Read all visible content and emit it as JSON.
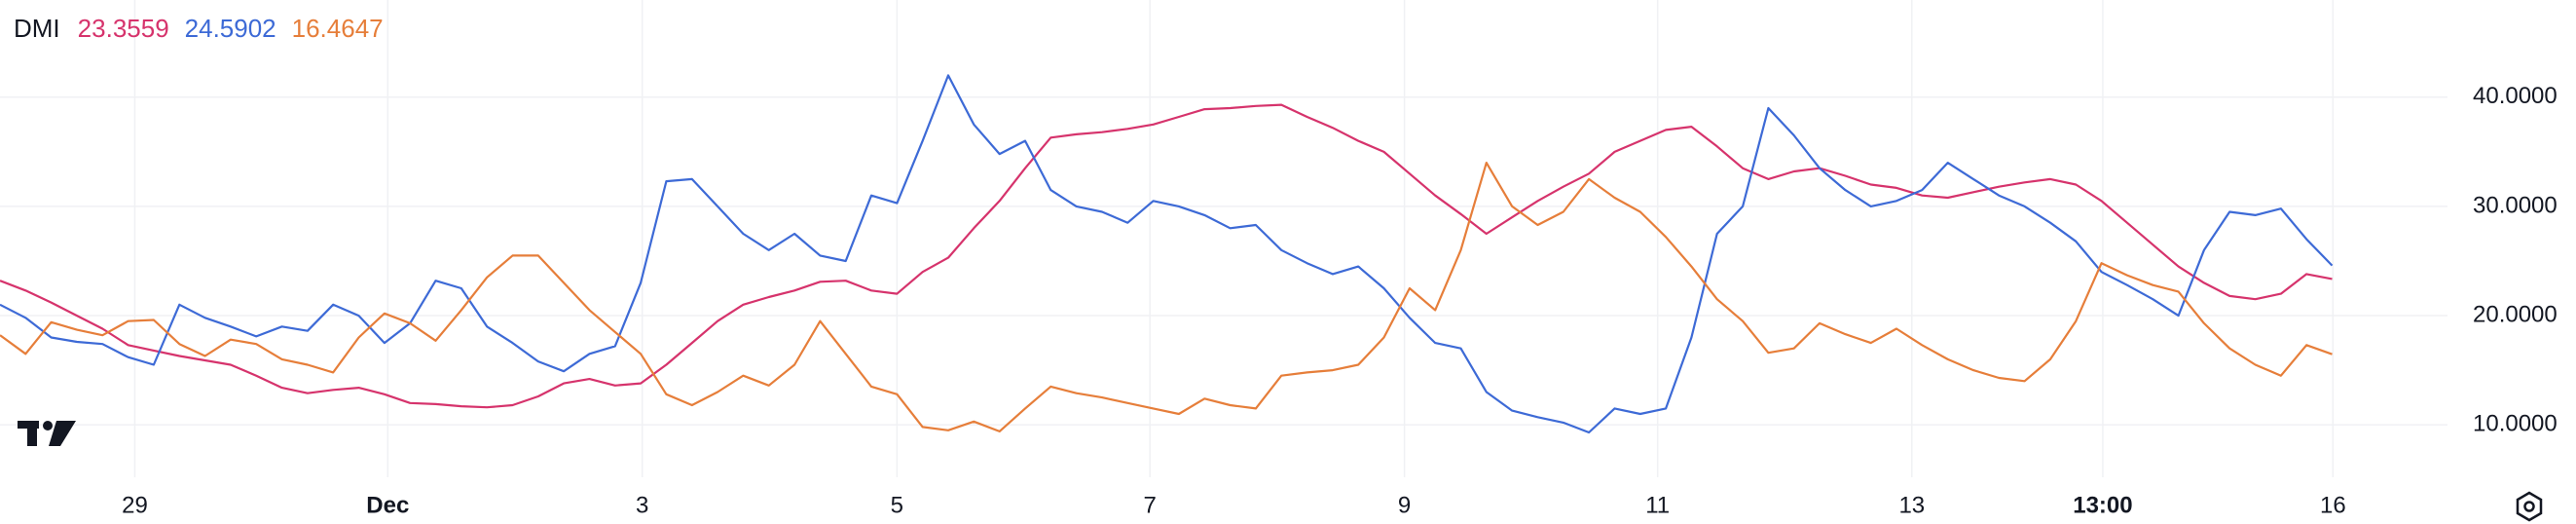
{
  "chart_data": {
    "type": "line",
    "title": "DMI",
    "xlim": [
      0,
      95.5
    ],
    "xticks": [
      {
        "value": 5.26,
        "label": "29"
      },
      {
        "value": 15.13,
        "label": "Dec"
      },
      {
        "value": 25.06,
        "label": "3"
      },
      {
        "value": 35,
        "label": "5"
      },
      {
        "value": 44.87,
        "label": "7"
      },
      {
        "value": 54.8,
        "label": "9"
      },
      {
        "value": 64.68,
        "label": "11"
      },
      {
        "value": 74.6,
        "label": "13"
      },
      {
        "value": 82.05,
        "label": "13:00"
      },
      {
        "value": 91.03,
        "label": "16"
      }
    ],
    "ylim": [
      5.2,
      48.9
    ],
    "yticks": [
      {
        "value": 10,
        "label": "10.0000"
      },
      {
        "value": 20,
        "label": "20.0000"
      },
      {
        "value": 30,
        "label": "30.0000"
      },
      {
        "value": 40,
        "label": "40.0000"
      }
    ],
    "grid": true,
    "series": [
      {
        "color": "#d6336c",
        "values": [
          23.2,
          22.3,
          21.2,
          20,
          18.8,
          17.3,
          16.8,
          16.3,
          15.9,
          15.5,
          14.5,
          13.4,
          12.9,
          13.2,
          13.4,
          12.8,
          12,
          11.9,
          11.7,
          11.6,
          11.8,
          12.6,
          13.8,
          14.2,
          13.6,
          13.8,
          15.5,
          17.5,
          19.5,
          21,
          21.7,
          22.3,
          23.1,
          23.2,
          22.3,
          22,
          24,
          25.3,
          28,
          30.5,
          33.5,
          36.3,
          36.6,
          36.8,
          37.1,
          37.5,
          38.2,
          38.9,
          39,
          39.2,
          39.3,
          38.2,
          37.2,
          36,
          35,
          33,
          31,
          29.3,
          27.5,
          29,
          30.5,
          31.8,
          33,
          35,
          36,
          37,
          37.3,
          35.5,
          33.5,
          32.5,
          33.2,
          33.5,
          32.8,
          32,
          31.7,
          31,
          30.8,
          31.3,
          31.8,
          32.2,
          32.5,
          32,
          30.5,
          28.5,
          26.5,
          24.5,
          23,
          21.8,
          21.5,
          22,
          23.8,
          23.3559
        ]
      },
      {
        "color": "#3d6ad6",
        "values": [
          21,
          19.8,
          18,
          17.6,
          17.4,
          16.2,
          15.5,
          21,
          19.8,
          19,
          18.1,
          19,
          18.6,
          21,
          20,
          17.5,
          19.3,
          23.2,
          22.5,
          19,
          17.5,
          15.8,
          14.9,
          16.5,
          17.2,
          23,
          32.3,
          32.5,
          30,
          27.5,
          26,
          27.5,
          25.5,
          25,
          31,
          30.3,
          36,
          42,
          37.5,
          34.8,
          36,
          31.5,
          30,
          29.5,
          28.5,
          30.5,
          30,
          29.2,
          28,
          28.3,
          26,
          24.8,
          23.8,
          24.5,
          22.5,
          19.8,
          17.5,
          17,
          13,
          11.3,
          10.7,
          10.2,
          9.3,
          11.5,
          11,
          11.5,
          18,
          27.5,
          30,
          39,
          36.5,
          33.5,
          31.5,
          30,
          30.5,
          31.5,
          34,
          32.5,
          31,
          30,
          28.5,
          26.8,
          24,
          22.8,
          21.5,
          20,
          26,
          29.5,
          29.2,
          29.8,
          27,
          24.5902
        ]
      },
      {
        "color": "#e67e3a",
        "values": [
          18.2,
          16.5,
          19.4,
          18.7,
          18.2,
          19.5,
          19.6,
          17.4,
          16.3,
          17.8,
          17.4,
          16,
          15.5,
          14.8,
          18,
          20.2,
          19.3,
          17.7,
          20.5,
          23.5,
          25.5,
          25.5,
          23,
          20.5,
          18.5,
          16.5,
          12.8,
          11.8,
          13,
          14.5,
          13.6,
          15.5,
          19.5,
          16.5,
          13.5,
          12.8,
          9.8,
          9.5,
          10.3,
          9.4,
          11.5,
          13.5,
          12.9,
          12.5,
          12,
          11.5,
          11,
          12.4,
          11.8,
          11.5,
          14.5,
          14.8,
          15,
          15.5,
          18,
          22.5,
          20.5,
          26,
          34,
          30,
          28.3,
          29.5,
          32.5,
          30.8,
          29.5,
          27.2,
          24.5,
          21.5,
          19.5,
          16.6,
          17,
          19.3,
          18.3,
          17.5,
          18.8,
          17.3,
          16,
          15,
          14.3,
          14,
          16,
          19.5,
          24.8,
          23.7,
          22.8,
          22.2,
          19.3,
          17,
          15.5,
          14.5,
          17.3,
          16.4647
        ]
      }
    ]
  }
}
